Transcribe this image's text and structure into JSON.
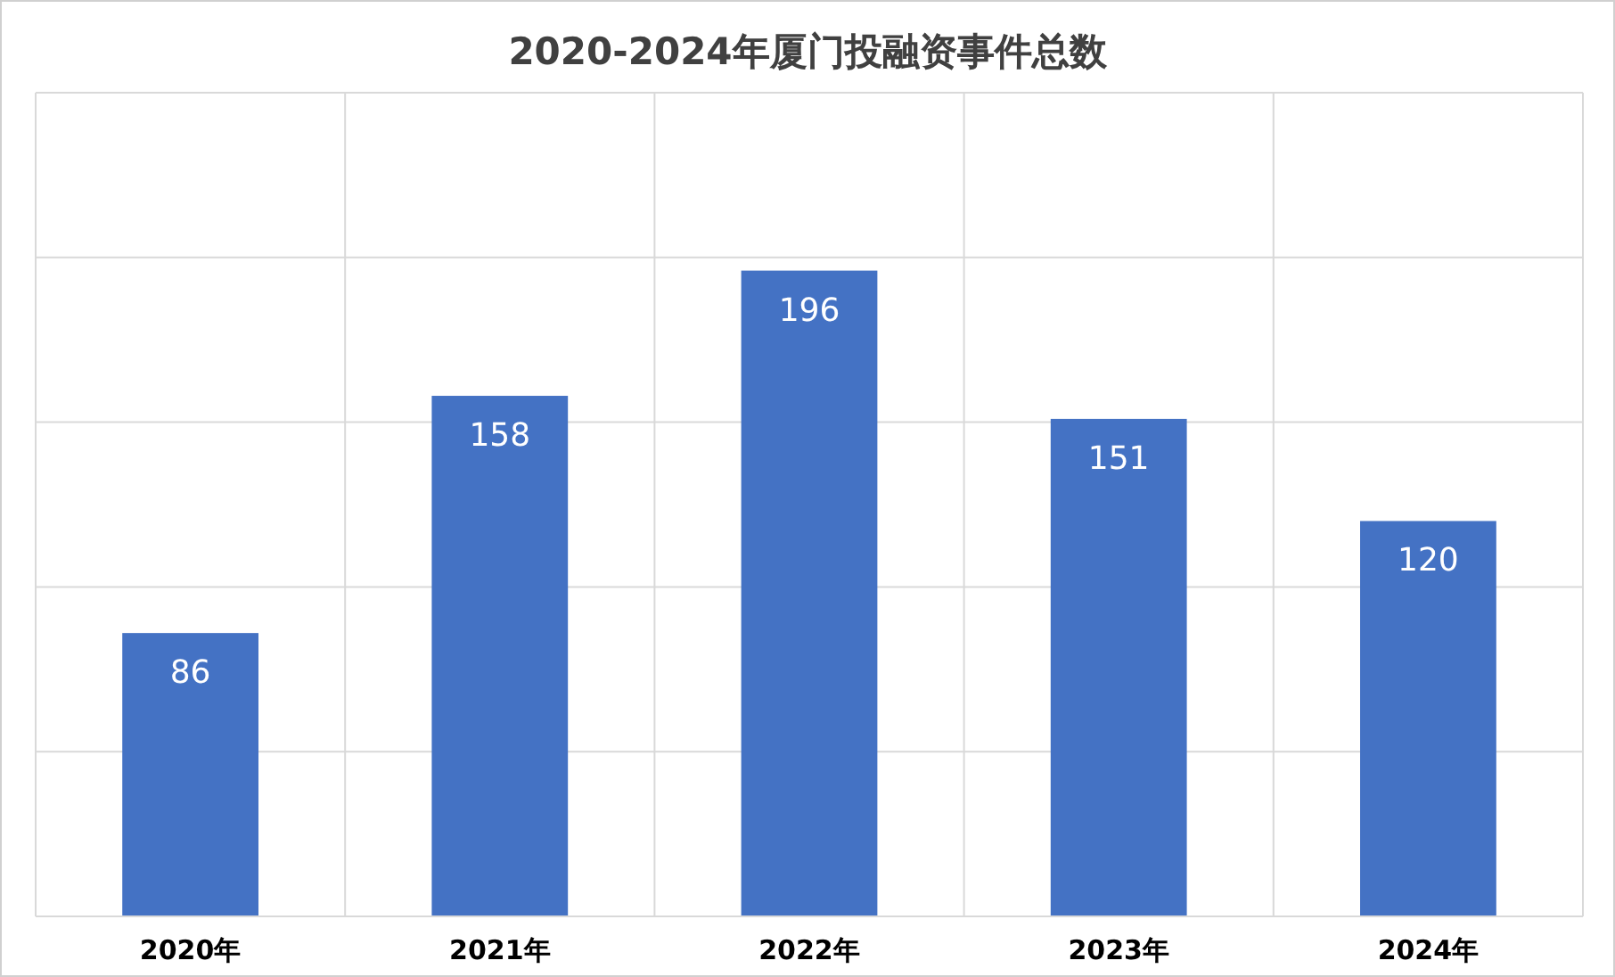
{
  "chart_data": {
    "type": "bar",
    "title": "2020-2024年厦门投融资事件总数",
    "categories": [
      "2020年",
      "2021年",
      "2022年",
      "2023年",
      "2024年"
    ],
    "values": [
      86,
      158,
      196,
      151,
      120
    ],
    "color": "#4472c4",
    "ylim": [
      0,
      250
    ],
    "yticks": [
      {
        "value": 0,
        "label": null
      },
      {
        "value": 50,
        "label": null
      },
      {
        "value": 100,
        "label": null
      },
      {
        "value": 150,
        "label": null
      },
      {
        "value": 200,
        "label": null
      },
      {
        "value": 250,
        "label": null
      }
    ],
    "tick_labels": "x",
    "grid": true,
    "data_labels": true
  }
}
